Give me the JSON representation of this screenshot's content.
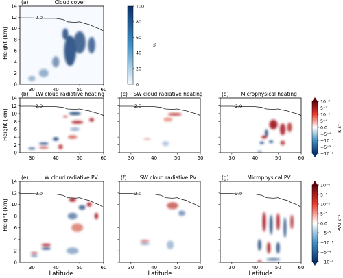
{
  "figure": {
    "xlabel": "Latitude",
    "ylabel": "Height (km)",
    "tropopause_label": "2.0"
  },
  "panels": [
    {
      "id": "a",
      "letter": "(a)",
      "title": "Cloud cover",
      "field": "cloud"
    },
    {
      "id": "b",
      "letter": "(b)",
      "title": "LW cloud radiative heating",
      "field": "lw_heat"
    },
    {
      "id": "c",
      "letter": "(c)",
      "title": "SW cloud radiative heating",
      "field": "sw_heat"
    },
    {
      "id": "d",
      "letter": "(d)",
      "title": "Microphysical heating",
      "field": "mp_heat"
    },
    {
      "id": "e",
      "letter": "(e)",
      "title": "LW cloud radiative PV",
      "field": "lw_pv"
    },
    {
      "id": "f",
      "letter": "(f)",
      "title": "SW cloud radiative PV",
      "field": "sw_pv"
    },
    {
      "id": "g",
      "letter": "(g)",
      "title": "Microphysical PV",
      "field": "mp_pv"
    }
  ],
  "colorbars": {
    "cloud": {
      "unit": "%",
      "ticks": [
        "100",
        "80",
        "60",
        "40",
        "20",
        "0"
      ],
      "colors": [
        "#f7fbff",
        "#08306b"
      ]
    },
    "heating": {
      "unit": "K s⁻¹",
      "ticks": [
        "10⁻³",
        "5⁻³",
        "10⁻⁴",
        "5⁻⁴",
        "0.0",
        "−5⁻⁴",
        "−10⁻⁴",
        "−5⁻³",
        "−10⁻³"
      ],
      "colors": [
        "#67000d",
        "#ffffff",
        "#08306b"
      ]
    },
    "pv": {
      "unit": "PVU s⁻¹",
      "ticks": [
        "10⁻⁴",
        "5⁻⁴",
        "10⁻⁵",
        "5⁻⁵",
        "0.0",
        "−5⁻⁵",
        "−10⁻⁵",
        "−5⁻⁴",
        "−10⁻⁴"
      ],
      "colors": [
        "#67000d",
        "#ffffff",
        "#08306b"
      ]
    }
  },
  "chart_data": [
    {
      "type": "heatmap",
      "panel": "a",
      "title": "Cloud cover",
      "xlabel": "",
      "ylabel": "Height (km)",
      "xlim": [
        25,
        60
      ],
      "ylim": [
        0,
        14
      ],
      "xticks": [
        30,
        40,
        50,
        60
      ],
      "yticks": [
        0,
        2,
        4,
        6,
        8,
        10,
        12,
        14
      ],
      "colorbar": {
        "min": 0,
        "max": 100,
        "unit": "%"
      },
      "tropopause_contour": "2.0"
    },
    {
      "type": "heatmap",
      "panel": "b",
      "title": "LW cloud radiative heating",
      "ylabel": "Height (km)",
      "xlim": [
        25,
        60
      ],
      "ylim": [
        0,
        14
      ],
      "colorbar": "heating"
    },
    {
      "type": "heatmap",
      "panel": "c",
      "title": "SW cloud radiative heating",
      "xlim": [
        25,
        60
      ],
      "ylim": [
        0,
        14
      ],
      "colorbar": "heating"
    },
    {
      "type": "heatmap",
      "panel": "d",
      "title": "Microphysical heating",
      "xlim": [
        25,
        60
      ],
      "ylim": [
        0,
        14
      ],
      "colorbar": "heating"
    },
    {
      "type": "heatmap",
      "panel": "e",
      "title": "LW cloud radiative PV",
      "xlabel": "Latitude",
      "ylabel": "Height (km)",
      "xlim": [
        25,
        60
      ],
      "ylim": [
        0,
        14
      ],
      "colorbar": "pv"
    },
    {
      "type": "heatmap",
      "panel": "f",
      "title": "SW cloud radiative PV",
      "xlabel": "Latitude",
      "xlim": [
        25,
        60
      ],
      "ylim": [
        0,
        14
      ],
      "colorbar": "pv"
    },
    {
      "type": "heatmap",
      "panel": "g",
      "title": "Microphysical PV",
      "xlabel": "Latitude",
      "xlim": [
        25,
        60
      ],
      "ylim": [
        0,
        14
      ],
      "colorbar": "pv"
    }
  ],
  "tropopause": {
    "lat": [
      25,
      30,
      35,
      40,
      43,
      45,
      48,
      50,
      52,
      54,
      56,
      58,
      60
    ],
    "height_km": [
      11.9,
      11.9,
      11.8,
      11.8,
      11.6,
      11.2,
      11.1,
      11.2,
      10.9,
      10.7,
      10.3,
      10.0,
      9.5
    ]
  },
  "blobs": {
    "cloud": [
      {
        "lat": 46,
        "z": 6,
        "w": 5,
        "h": 5.5,
        "v": 0.85
      },
      {
        "lat": 50,
        "z": 7.5,
        "w": 5,
        "h": 4,
        "v": 0.75
      },
      {
        "lat": 44,
        "z": 9,
        "w": 2.5,
        "h": 2,
        "v": 0.8
      },
      {
        "lat": 55,
        "z": 7,
        "w": 3,
        "h": 3,
        "v": 0.7
      },
      {
        "lat": 40,
        "z": 4,
        "w": 3,
        "h": 2,
        "v": 0.45
      },
      {
        "lat": 35,
        "z": 2,
        "w": 4,
        "h": 1.5,
        "v": 0.3
      },
      {
        "lat": 30,
        "z": 1,
        "w": 3,
        "h": 1,
        "v": 0.25
      }
    ],
    "lw_heat": [
      {
        "lat": 48,
        "z": 10,
        "w": 5,
        "h": 0.8,
        "v": -0.9
      },
      {
        "lat": 44,
        "z": 9.2,
        "w": 2,
        "h": 0.5,
        "v": 0.5
      },
      {
        "lat": 49,
        "z": 7.8,
        "w": 5,
        "h": 0.8,
        "v": 0.8
      },
      {
        "lat": 55,
        "z": 8.4,
        "w": 2,
        "h": 0.9,
        "v": 0.85
      },
      {
        "lat": 48,
        "z": 6,
        "w": 4,
        "h": 1.0,
        "v": -0.25
      },
      {
        "lat": 47,
        "z": 4,
        "w": 4,
        "h": 1.0,
        "v": 0.4
      },
      {
        "lat": 40,
        "z": 3.5,
        "w": 2.5,
        "h": 1,
        "v": -0.8
      },
      {
        "lat": 35,
        "z": 2.3,
        "w": 4,
        "h": 0.6,
        "v": -0.85
      },
      {
        "lat": 30,
        "z": 1.1,
        "w": 3,
        "h": 0.5,
        "v": -0.8
      },
      {
        "lat": 35,
        "z": 1.3,
        "w": 4,
        "h": 0.5,
        "v": 0.6
      },
      {
        "lat": 42,
        "z": 1.5,
        "w": 2,
        "h": 1.2,
        "v": 0.7
      }
    ],
    "sw_heat": [
      {
        "lat": 49,
        "z": 9.8,
        "w": 6,
        "h": 0.8,
        "v": 0.6
      },
      {
        "lat": 46,
        "z": 8.5,
        "w": 4,
        "h": 1.0,
        "v": 0.2
      },
      {
        "lat": 37,
        "z": 3.5,
        "w": 3,
        "h": 0.3,
        "v": 0.4
      },
      {
        "lat": 45,
        "z": 2.3,
        "w": 3,
        "h": 1.2,
        "v": -0.15
      }
    ],
    "mp_heat": [
      {
        "lat": 48,
        "z": 7.2,
        "w": 3.5,
        "h": 2.5,
        "v": 0.95
      },
      {
        "lat": 52,
        "z": 6,
        "w": 2.5,
        "h": 3,
        "v": 0.8
      },
      {
        "lat": 55,
        "z": 6.5,
        "w": 2,
        "h": 2.5,
        "v": 0.7
      },
      {
        "lat": 45,
        "z": 5,
        "w": 1.2,
        "h": 2,
        "v": -0.9
      },
      {
        "lat": 44,
        "z": 4,
        "w": 2.5,
        "h": 0.8,
        "v": 0.85
      },
      {
        "lat": 43,
        "z": 2.5,
        "w": 2,
        "h": 0.6,
        "v": -0.95
      },
      {
        "lat": 47,
        "z": 2.8,
        "w": 2,
        "h": 0.7,
        "v": -0.8
      },
      {
        "lat": 52,
        "z": 2.5,
        "w": 2,
        "h": 1.2,
        "v": 0.7
      },
      {
        "lat": 42,
        "z": 0.3,
        "w": 2,
        "h": 0.5,
        "v": -0.5
      }
    ],
    "lw_pv": [
      {
        "lat": 47,
        "z": 10.8,
        "w": 3,
        "h": 0.7,
        "v": 0.85
      },
      {
        "lat": 51,
        "z": 9.5,
        "w": 3,
        "h": 0.8,
        "v": -0.7
      },
      {
        "lat": 54,
        "z": 10,
        "w": 2,
        "h": 0.8,
        "v": 0.8
      },
      {
        "lat": 57,
        "z": 8,
        "w": 1.5,
        "h": 1.2,
        "v": 0.85
      },
      {
        "lat": 47,
        "z": 8,
        "w": 4,
        "h": 1.2,
        "v": -0.5
      },
      {
        "lat": 49,
        "z": 6,
        "w": 5,
        "h": 1.5,
        "v": 0.3
      },
      {
        "lat": 36,
        "z": 3.0,
        "w": 4,
        "h": 0.4,
        "v": 0.95
      },
      {
        "lat": 36,
        "z": 2.4,
        "w": 4,
        "h": 0.4,
        "v": -0.9
      },
      {
        "lat": 31,
        "z": 1.6,
        "w": 3,
        "h": 0.3,
        "v": 0.8
      },
      {
        "lat": 31,
        "z": 1.1,
        "w": 3,
        "h": 0.3,
        "v": -0.7
      },
      {
        "lat": 47,
        "z": 2,
        "w": 5,
        "h": 1.2,
        "v": -0.3
      }
    ],
    "sw_pv": [
      {
        "lat": 48,
        "z": 9.8,
        "w": 5,
        "h": 1.2,
        "v": 0.5
      },
      {
        "lat": 52,
        "z": 8.5,
        "w": 3,
        "h": 1.0,
        "v": -0.4
      },
      {
        "lat": 36,
        "z": 3.7,
        "w": 4,
        "h": 0.3,
        "v": 0.6
      },
      {
        "lat": 36,
        "z": 3.2,
        "w": 4,
        "h": 0.3,
        "v": -0.6
      },
      {
        "lat": 47,
        "z": 3,
        "w": 3,
        "h": 1.5,
        "v": -0.2
      }
    ],
    "mp_pv": [
      {
        "lat": 44,
        "z": 7,
        "w": 1.4,
        "h": 3.5,
        "v": 0.9
      },
      {
        "lat": 47,
        "z": 6.5,
        "w": 1.2,
        "h": 3.5,
        "v": -0.9
      },
      {
        "lat": 50,
        "z": 7,
        "w": 1.3,
        "h": 3,
        "v": 0.9
      },
      {
        "lat": 53,
        "z": 6,
        "w": 1.2,
        "h": 3.5,
        "v": -0.85
      },
      {
        "lat": 56,
        "z": 7,
        "w": 1.2,
        "h": 2.5,
        "v": 0.85
      },
      {
        "lat": 42,
        "z": 3,
        "w": 1.5,
        "h": 2,
        "v": -0.8
      },
      {
        "lat": 46,
        "z": 2.5,
        "w": 1.5,
        "h": 2,
        "v": 0.85
      },
      {
        "lat": 50,
        "z": 2.5,
        "w": 1.5,
        "h": 2,
        "v": -0.8
      },
      {
        "lat": 48,
        "z": 0.5,
        "w": 6,
        "h": 0.3,
        "v": -0.95
      },
      {
        "lat": 42,
        "z": 0.2,
        "w": 2,
        "h": 0.3,
        "v": 0.95
      }
    ]
  }
}
